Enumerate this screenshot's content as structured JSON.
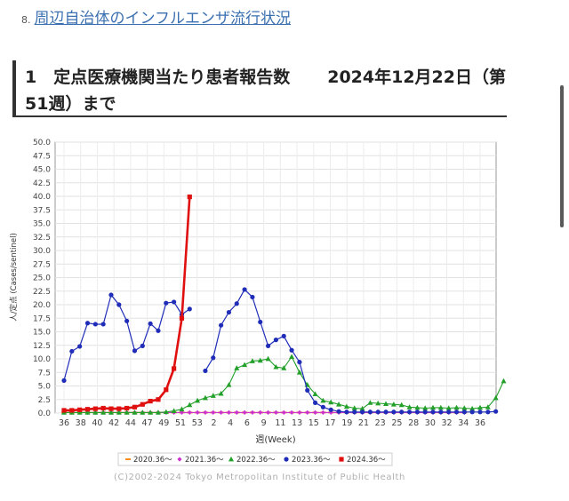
{
  "link": {
    "number": "8.",
    "text": "周辺自治体のインフルエンザ流行状況"
  },
  "heading": {
    "line1a": "1　定点医療機関当たり患者報告数",
    "line1b": "2024年12月22日（第",
    "line2": "51週）まで"
  },
  "copyright": "(C)2002-2024 Tokyo Metropolitan Institute of Public Health",
  "chart_data": {
    "type": "line",
    "xlabel": "週(Week)",
    "ylabel": "人/定点 (Cases/sentinel)",
    "ylim": [
      0,
      50
    ],
    "grid": true,
    "legend_placement": "bottom",
    "x_ticks": [
      "36",
      "38",
      "40",
      "42",
      "44",
      "47",
      "49",
      "51",
      "53",
      "2",
      "4",
      "6",
      "9",
      "11",
      "13",
      "15",
      "17",
      "19",
      "21",
      "23",
      "25",
      "28",
      "30",
      "32",
      "34",
      "36"
    ],
    "y_ticks": [
      "0.0",
      "2.5",
      "5.0",
      "7.5",
      "10.0",
      "12.5",
      "15.0",
      "17.5",
      "20.0",
      "22.5",
      "25.0",
      "27.5",
      "30.0",
      "32.5",
      "35.0",
      "37.5",
      "40.0",
      "42.5",
      "45.0",
      "47.5",
      "50.0"
    ],
    "series": [
      {
        "name": "2020.36～",
        "color": "#ff8c1a",
        "marker": "dash",
        "values": [
          0.1,
          0.1,
          0.1,
          0.1,
          0.1,
          0.1,
          0.1,
          0.1,
          0.1,
          0.1,
          0.1,
          0.1,
          0.1,
          0.1,
          0.1,
          0.1,
          0.1,
          0.1,
          0.1,
          0.1,
          0.1,
          0.1,
          0.1,
          0.1,
          0.1,
          0.1,
          0.1,
          0.1,
          0.1,
          0.1,
          0.1,
          0.1,
          0.1,
          0.1,
          0.1,
          0.1,
          0.1,
          0.1,
          0.1,
          0.1,
          0.1,
          0.1,
          0.1,
          0.1,
          0.1,
          0.1,
          0.1,
          0.1,
          0.1,
          0.1,
          0.1,
          0.1
        ]
      },
      {
        "name": "2021.36～",
        "color": "#cc33cc",
        "marker": "diamond",
        "values": [
          0.1,
          0.1,
          0.1,
          0.1,
          0.1,
          0.1,
          0.1,
          0.1,
          0.1,
          0.1,
          0.1,
          0.1,
          0.1,
          0.1,
          0.1,
          0.1,
          0.1,
          0.1,
          0.1,
          0.1,
          0.1,
          0.1,
          0.1,
          0.1,
          0.1,
          0.1,
          0.1,
          0.1,
          0.1,
          0.1,
          0.1,
          0.1,
          0.1,
          0.1,
          0.1,
          0.1,
          0.1,
          0.1,
          0.1,
          0.1,
          0.1,
          0.1,
          0.1,
          0.1,
          0.1,
          0.1,
          0.1,
          0.1,
          0.1,
          0.1,
          0.1,
          0.1
        ]
      },
      {
        "name": "2022.36～",
        "color": "#22a02a",
        "marker": "triangle",
        "values": [
          0.1,
          0.1,
          0.1,
          0.1,
          0.1,
          0.1,
          0.1,
          0.1,
          0.1,
          0.1,
          0.1,
          0.1,
          0.1,
          0.2,
          0.4,
          0.7,
          1.5,
          2.3,
          2.8,
          3.2,
          3.6,
          5.2,
          8.3,
          8.9,
          9.6,
          9.7,
          10.0,
          8.5,
          8.3,
          10.4,
          7.5,
          5.2,
          3.5,
          2.3,
          2.0,
          1.6,
          1.2,
          0.9,
          0.8,
          1.9,
          1.8,
          1.7,
          1.6,
          1.5,
          1.1,
          1.0,
          0.9,
          1.0,
          1.0,
          0.9,
          1.0,
          0.9,
          0.8,
          1.0,
          1.1,
          2.8,
          5.9
        ]
      },
      {
        "name": "2023.36～",
        "color": "#1f2db8",
        "marker": "circle",
        "values": [
          6.0,
          11.4,
          12.3,
          16.6,
          16.4,
          16.4,
          21.8,
          20.0,
          17.0,
          11.5,
          12.4,
          16.5,
          15.2,
          20.3,
          20.5,
          18.2,
          19.2,
          null,
          7.8,
          10.2,
          16.2,
          18.6,
          20.2,
          22.8,
          21.4,
          16.8,
          12.4,
          13.5,
          14.2,
          11.6,
          9.4,
          4.2,
          1.9,
          1.1,
          0.6,
          0.3,
          0.2,
          0.2,
          0.2,
          0.2,
          0.2,
          0.2,
          0.2,
          0.2,
          0.2,
          0.2,
          0.2,
          0.2,
          0.2,
          0.2,
          0.2,
          0.2,
          0.2,
          0.2,
          0.2,
          0.3
        ]
      },
      {
        "name": "2024.36～",
        "color": "#e01010",
        "marker": "square",
        "values": [
          0.5,
          0.5,
          0.6,
          0.7,
          0.8,
          0.9,
          0.8,
          0.8,
          0.9,
          1.1,
          1.6,
          2.2,
          2.5,
          4.3,
          8.2,
          17.5,
          39.9
        ]
      }
    ]
  }
}
